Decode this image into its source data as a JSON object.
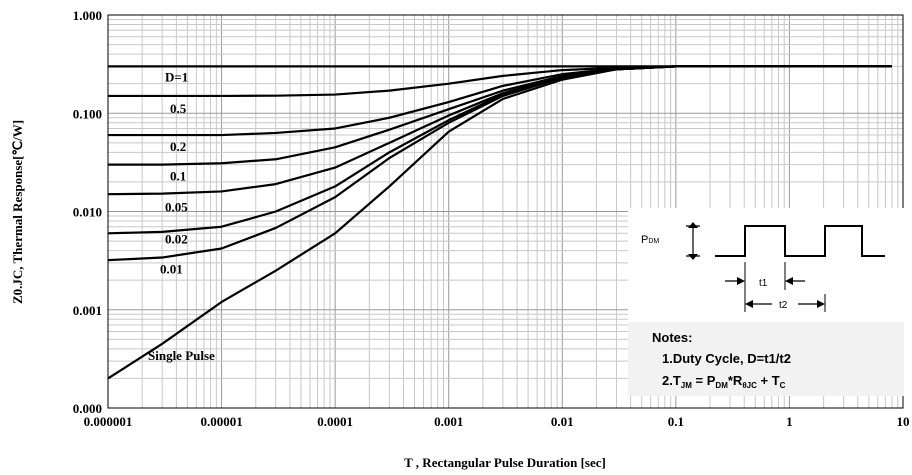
{
  "chart_data": {
    "type": "line",
    "xlabel": "T , Rectangular Pulse Duration [sec]",
    "ylabel": "Z0.JC, Thermal Response[℃/W]",
    "xlog": true,
    "ylog": true,
    "grid": true,
    "minor_grid": true,
    "color": "#000000",
    "xlim": [
      1e-06,
      10
    ],
    "xticks": [
      1e-06,
      1e-05,
      0.0001,
      0.001,
      0.01,
      0.1,
      1,
      10
    ],
    "ylim": [
      0.0001,
      1
    ],
    "yticks": [
      {
        "value": 0.0001,
        "label": "0.000"
      },
      {
        "value": 0.001,
        "label": "0.001"
      },
      {
        "value": 0.01,
        "label": "0.010"
      },
      {
        "value": 0.1,
        "label": "0.100"
      },
      {
        "value": 1,
        "label": "1.000"
      }
    ],
    "x": [
      1e-06,
      3e-06,
      1e-05,
      3e-05,
      0.0001,
      0.0003,
      0.001,
      0.003,
      0.01,
      0.03,
      0.1,
      1,
      8
    ],
    "series": [
      {
        "name": "D=1",
        "values": [
          0.3,
          0.3,
          0.3,
          0.3,
          0.3,
          0.3,
          0.3,
          0.3,
          0.3,
          0.3,
          0.3,
          0.3,
          0.3
        ]
      },
      {
        "name": "0.5",
        "values": [
          0.15,
          0.15,
          0.15,
          0.151,
          0.155,
          0.17,
          0.2,
          0.24,
          0.275,
          0.29,
          0.3,
          0.3,
          0.3
        ]
      },
      {
        "name": "0.2",
        "values": [
          0.06,
          0.06,
          0.06,
          0.063,
          0.07,
          0.09,
          0.13,
          0.19,
          0.25,
          0.285,
          0.3,
          0.3,
          0.3
        ]
      },
      {
        "name": "0.1",
        "values": [
          0.03,
          0.03,
          0.031,
          0.034,
          0.045,
          0.068,
          0.11,
          0.17,
          0.24,
          0.28,
          0.3,
          0.3,
          0.3
        ]
      },
      {
        "name": "0.05",
        "values": [
          0.015,
          0.0152,
          0.016,
          0.019,
          0.028,
          0.05,
          0.095,
          0.16,
          0.235,
          0.28,
          0.3,
          0.3,
          0.3
        ]
      },
      {
        "name": "0.02",
        "values": [
          0.006,
          0.0062,
          0.007,
          0.01,
          0.018,
          0.04,
          0.085,
          0.155,
          0.23,
          0.28,
          0.3,
          0.3,
          0.3
        ]
      },
      {
        "name": "0.01",
        "values": [
          0.0032,
          0.0034,
          0.0042,
          0.0068,
          0.014,
          0.035,
          0.08,
          0.15,
          0.23,
          0.28,
          0.3,
          0.3,
          0.3
        ]
      },
      {
        "name": "Single Pulse",
        "values": [
          0.0002,
          0.00045,
          0.0012,
          0.0025,
          0.006,
          0.018,
          0.065,
          0.14,
          0.22,
          0.28,
          0.3,
          0.3,
          0.3
        ]
      }
    ],
    "inset": {
      "pdm": [
        "P",
        "DM"
      ],
      "t1": "t1",
      "t2": "t2",
      "notes_title": "Notes:",
      "note1": "1.Duty  Cycle, D=t1/t2",
      "note2": [
        "2.T",
        "JM",
        " = P",
        "DM",
        "*R",
        "θJC",
        " + T",
        "C"
      ]
    }
  }
}
